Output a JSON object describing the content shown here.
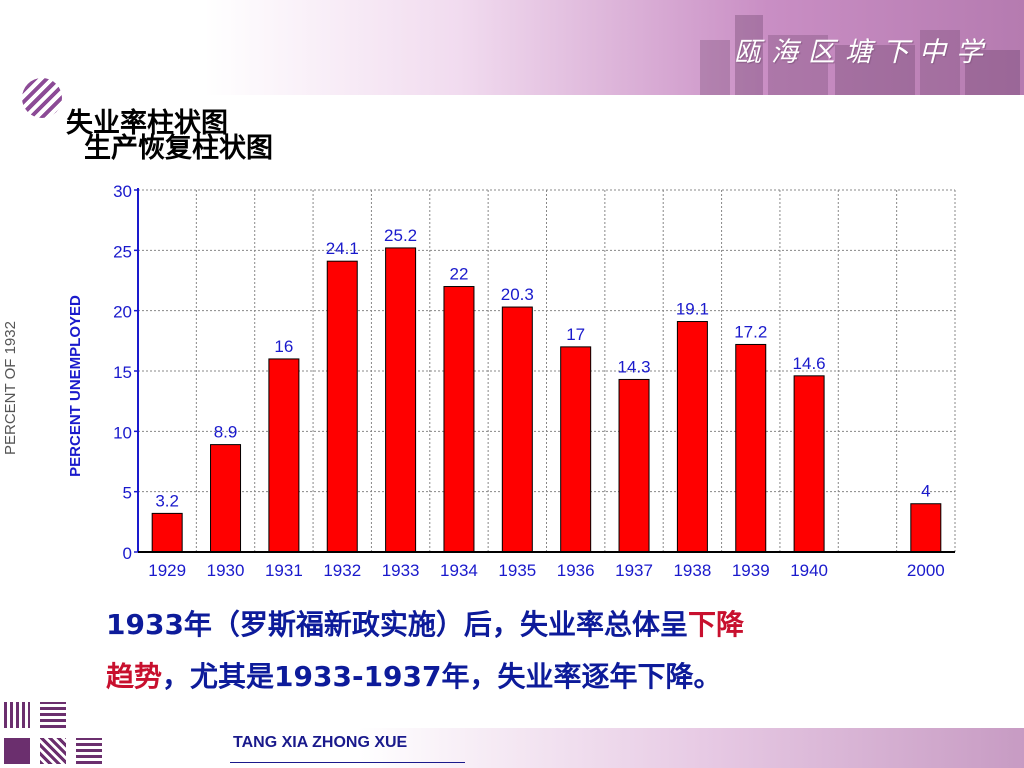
{
  "header": {
    "school_name": "瓯海区塘下中学"
  },
  "titles": {
    "overlay_a": "失业率柱状图",
    "overlay_b": "生产恢复柱状图"
  },
  "side_label": "PERCENT OF 1932",
  "chart_data": {
    "type": "bar",
    "categories": [
      "1929",
      "1930",
      "1931",
      "1932",
      "1933",
      "1934",
      "1935",
      "1936",
      "1937",
      "1938",
      "1939",
      "1940",
      "",
      "2000"
    ],
    "values": [
      3.2,
      8.9,
      16,
      24.1,
      25.2,
      22,
      20.3,
      17,
      14.3,
      19.1,
      17.2,
      14.6,
      null,
      4
    ],
    "value_labels": [
      "3.2",
      "8.9",
      "16",
      "24.1",
      "25.2",
      "22",
      "20.3",
      "17",
      "14.3",
      "19.1",
      "17.2",
      "14.6",
      "",
      "4"
    ],
    "ylabel": "PERCENT UNEMPLOYED",
    "ylim": [
      0,
      30
    ],
    "yticks": [
      "0",
      "5",
      "10",
      "15",
      "20",
      "25",
      "30"
    ],
    "grid": true,
    "bar_color": "#ff0000",
    "axis_color": "#1a1acc"
  },
  "caption": {
    "line1_main": "1933年（罗斯福新政实施）后，",
    "line1_overlay": "失业率总体呈",
    "line1_red": "下降",
    "line2_red": "趋势",
    "line2_main": "，尤其是1933-1937年，",
    "line2_overlay": "失业率逐年",
    "line2_end": "下降。"
  },
  "footer": {
    "text": "TANG XIA ZHONG XUE"
  },
  "colors": {
    "accent_purple": "#b57bb0",
    "caption_blue": "#0d1b9a",
    "highlight_red": "#c8102e"
  }
}
